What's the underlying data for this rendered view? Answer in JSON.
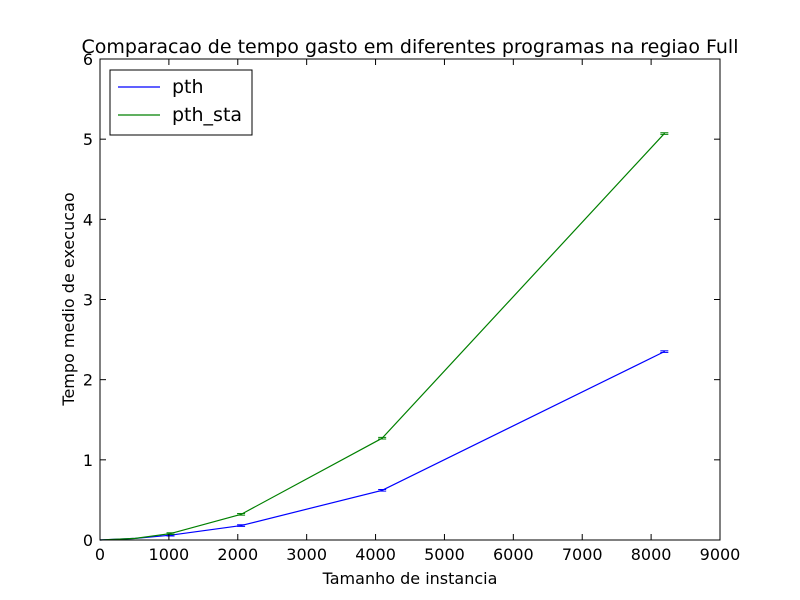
{
  "chart_data": {
    "type": "line",
    "title": "Comparacao de tempo gasto em diferentes programas na regiao Full",
    "xlabel": "Tamanho de instancia",
    "ylabel": "Tempo medio de execucao",
    "xlim": [
      0,
      9000
    ],
    "ylim": [
      0,
      6
    ],
    "xticks": [
      "0",
      "1000",
      "2000",
      "3000",
      "4000",
      "5000",
      "6000",
      "7000",
      "8000",
      "9000"
    ],
    "yticks": [
      "0",
      "1",
      "2",
      "3",
      "4",
      "5",
      "6"
    ],
    "grid": false,
    "legend_position": "top-left",
    "series": [
      {
        "name": "pth",
        "color": "#0000ff",
        "x": [
          0,
          512,
          1024,
          2048,
          4096,
          8192
        ],
        "y": [
          0.0,
          0.02,
          0.06,
          0.18,
          0.62,
          2.35
        ],
        "error": [
          0.0,
          0.0,
          0.01,
          0.01,
          0.01,
          0.01
        ]
      },
      {
        "name": "pth_sta",
        "color": "#008000",
        "x": [
          0,
          512,
          1024,
          2048,
          4096,
          8192
        ],
        "y": [
          0.0,
          0.02,
          0.08,
          0.32,
          1.27,
          5.07
        ],
        "error": [
          0.0,
          0.0,
          0.01,
          0.01,
          0.01,
          0.01
        ]
      }
    ]
  }
}
